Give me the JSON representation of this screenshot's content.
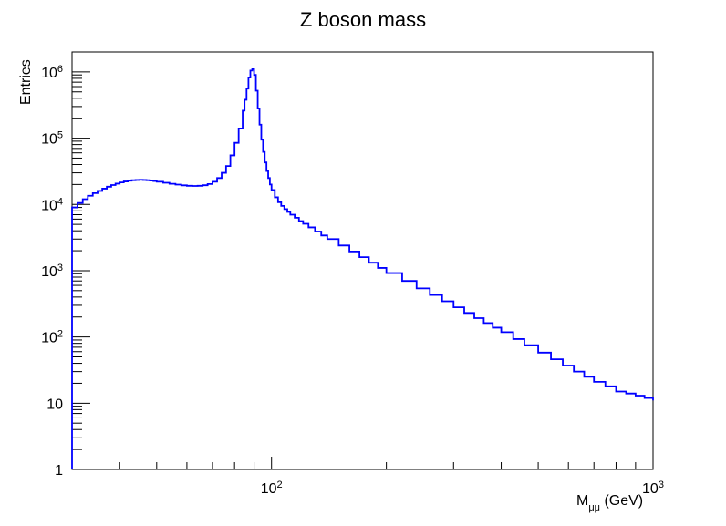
{
  "chart_data": {
    "type": "histogram",
    "title": "Z boson mass",
    "xlabel_main": "M",
    "xlabel_sub": "μμ",
    "xlabel_unit": " (GeV)",
    "ylabel": "Entries",
    "x_scale": "log",
    "y_scale": "log",
    "xlim": [
      30,
      1000
    ],
    "ylim": [
      1,
      2000000
    ],
    "grid": false,
    "legend": "none",
    "line_color": "#0000ff",
    "x_major_ticks": [
      {
        "value": 100,
        "base": "10",
        "exp": "2"
      },
      {
        "value": 1000,
        "base": "10",
        "exp": "3"
      }
    ],
    "y_major_ticks": [
      {
        "value": 1,
        "base": "1",
        "exp": ""
      },
      {
        "value": 10,
        "base": "10",
        "exp": ""
      },
      {
        "value": 100,
        "base": "10",
        "exp": "2"
      },
      {
        "value": 1000,
        "base": "10",
        "exp": "3"
      },
      {
        "value": 10000,
        "base": "10",
        "exp": "4"
      },
      {
        "value": 100000,
        "base": "10",
        "exp": "5"
      },
      {
        "value": 1000000,
        "base": "10",
        "exp": "6"
      }
    ],
    "series": [
      {
        "x": [
          30,
          31,
          32,
          33,
          34,
          35,
          36,
          37,
          38,
          39,
          40,
          41,
          42,
          43,
          44,
          45,
          46,
          47,
          48,
          49,
          50,
          52,
          54,
          56,
          58,
          60,
          62,
          64,
          66,
          68,
          70,
          72,
          74,
          76,
          78,
          80,
          82,
          84,
          85,
          86,
          87,
          88,
          89,
          90,
          91,
          92,
          93,
          94,
          95,
          96,
          97,
          98,
          99,
          100,
          102,
          104,
          106,
          108,
          110,
          112,
          115,
          118,
          121,
          125,
          130,
          135,
          140,
          150,
          160,
          170,
          180,
          190,
          200,
          220,
          240,
          260,
          280,
          300,
          320,
          340,
          360,
          380,
          400,
          430,
          460,
          500,
          540,
          580,
          620,
          660,
          700,
          750,
          800,
          850,
          900,
          950,
          1000
        ],
        "y": [
          9000,
          10500,
          12000,
          13500,
          14800,
          16000,
          17300,
          18500,
          19600,
          20600,
          21500,
          22200,
          22800,
          23200,
          23400,
          23500,
          23400,
          23200,
          22900,
          22500,
          22000,
          21200,
          20500,
          19900,
          19400,
          19100,
          19000,
          19100,
          19500,
          20300,
          22000,
          25000,
          30000,
          38000,
          55000,
          85000,
          140000,
          260000,
          380000,
          560000,
          820000,
          1050000,
          1100000,
          900000,
          520000,
          280000,
          160000,
          95000,
          62000,
          43000,
          32000,
          25000,
          20000,
          16500,
          12800,
          10800,
          9500,
          8500,
          7700,
          7000,
          6300,
          5600,
          5100,
          4500,
          3900,
          3400,
          3000,
          2400,
          1950,
          1600,
          1320,
          1100,
          920,
          700,
          540,
          430,
          345,
          280,
          230,
          192,
          162,
          138,
          118,
          93,
          75,
          58,
          46,
          37,
          30,
          25,
          21,
          18,
          15,
          14,
          13,
          12,
          11
        ]
      }
    ]
  }
}
